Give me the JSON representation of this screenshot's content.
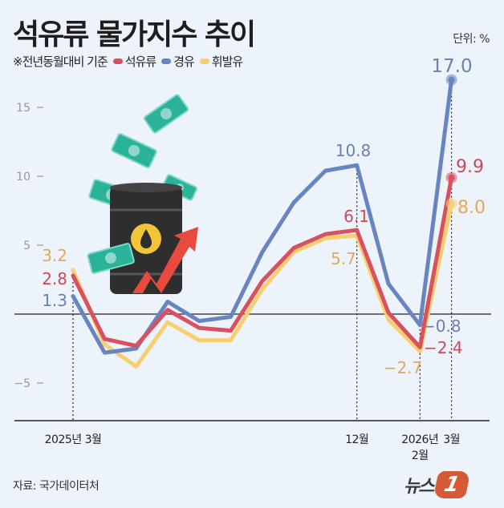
{
  "header": {
    "title": "석유류 물가지수 추이",
    "subtitle_note": "※전년동월대비 기준",
    "unit": "단위: %"
  },
  "legend": [
    {
      "name": "석유류",
      "color": "#d9505f"
    },
    {
      "name": "경유",
      "color": "#6885c2"
    },
    {
      "name": "휘발유",
      "color": "#f7cf70"
    }
  ],
  "footer": {
    "source": "자료: 국가데이터처",
    "logo_text": "뉴스",
    "logo_badge": "1"
  },
  "chart_data": {
    "type": "line",
    "title": "석유류 물가지수 추이",
    "subtitle": "※전년동월대비 기준",
    "unit": "%",
    "x": [
      "2025-03",
      "2025-04",
      "2025-05",
      "2025-06",
      "2025-07",
      "2025-08",
      "2025-09",
      "2025-10",
      "2025-11",
      "2025-12",
      "2026-01",
      "2026-02",
      "2026-03"
    ],
    "x_tick_labels": [
      {
        "index": 0,
        "label": "2025년 3월"
      },
      {
        "index": 9,
        "label": "12월"
      },
      {
        "index": 11,
        "label": "2026년\n2월"
      },
      {
        "index": 12,
        "label": "3월"
      }
    ],
    "y_ticks": [
      15,
      10,
      5,
      -5
    ],
    "ylim": [
      -7.5,
      17.5
    ],
    "grid": false,
    "zero_line": true,
    "legend_position": "top-left",
    "series": [
      {
        "name": "석유류",
        "color": "#d9505f",
        "values": [
          2.8,
          -1.8,
          -2.3,
          0.3,
          -1.0,
          -1.2,
          2.4,
          4.8,
          5.8,
          6.1,
          0.1,
          -2.4,
          9.9
        ]
      },
      {
        "name": "경유",
        "color": "#6885c2",
        "values": [
          1.3,
          -2.8,
          -2.5,
          0.9,
          -0.5,
          -0.2,
          4.5,
          8.1,
          10.4,
          10.8,
          2.2,
          -0.8,
          17.0
        ]
      },
      {
        "name": "휘발유",
        "color": "#f7cf70",
        "values": [
          3.2,
          -2.2,
          -3.8,
          -0.6,
          -1.9,
          -1.9,
          1.8,
          4.5,
          5.5,
          5.7,
          -0.4,
          -2.7,
          8.0
        ]
      }
    ],
    "annotations": [
      {
        "series": "휘발유",
        "index": 0,
        "label": "3.2"
      },
      {
        "series": "석유류",
        "index": 0,
        "label": "2.8"
      },
      {
        "series": "경유",
        "index": 0,
        "label": "1.3"
      },
      {
        "series": "경유",
        "index": 9,
        "label": "10.8"
      },
      {
        "series": "석유류",
        "index": 9,
        "label": "6.1"
      },
      {
        "series": "휘발유",
        "index": 9,
        "label": "5.7"
      },
      {
        "series": "경유",
        "index": 11,
        "label": "-0.8"
      },
      {
        "series": "석유류",
        "index": 11,
        "label": "-2.4"
      },
      {
        "series": "휘발유",
        "index": 11,
        "label": "-2.7"
      },
      {
        "series": "경유",
        "index": 12,
        "label": "17.0"
      },
      {
        "series": "석유류",
        "index": 12,
        "label": "9.9"
      },
      {
        "series": "휘발유",
        "index": 12,
        "label": "8.0"
      }
    ]
  }
}
